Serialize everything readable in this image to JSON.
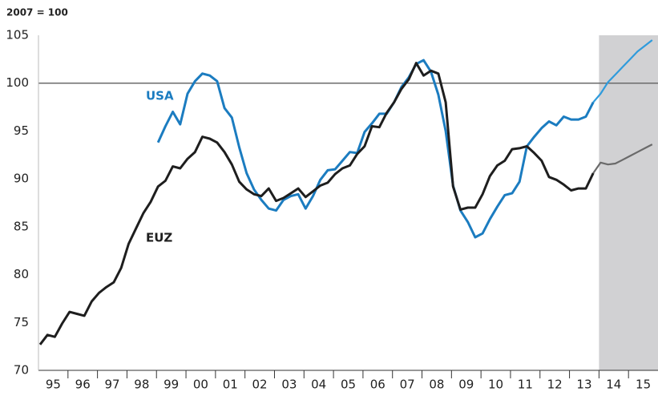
{
  "chart_data": {
    "type": "line",
    "y_label": "2007 = 100",
    "categories": [
      "95",
      "96",
      "97",
      "98",
      "99",
      "00",
      "01",
      "02",
      "03",
      "04",
      "05",
      "06",
      "07",
      "08",
      "09",
      "10",
      "11",
      "12",
      "13",
      "14",
      "15"
    ],
    "ylim": [
      70,
      105
    ],
    "yticks": [
      70,
      75,
      80,
      85,
      90,
      95,
      100,
      105
    ],
    "ref_line": 100,
    "shade": {
      "from": "14",
      "to": "15",
      "color": "#d1d1d3"
    },
    "series": [
      {
        "name": "USA",
        "color": "#1b7cc0",
        "forecast_color": "#2f9bdc",
        "values": [
          [
            null,
            null,
            null,
            null
          ],
          [
            null,
            null,
            null,
            null
          ],
          [
            null,
            null,
            null,
            null
          ],
          [
            null,
            null,
            null,
            null
          ],
          [
            93.8,
            95.5,
            97.0,
            95.7
          ],
          [
            98.9,
            100.2,
            101.0,
            100.8
          ],
          [
            100.2,
            97.4,
            96.4,
            93.3
          ],
          [
            90.6,
            88.9,
            87.8,
            86.9
          ],
          [
            86.7,
            87.8,
            88.2,
            88.4
          ],
          [
            86.9,
            88.2,
            89.9,
            90.9
          ],
          [
            91.0,
            91.9,
            92.8,
            92.7
          ],
          [
            94.9,
            95.8,
            96.8,
            96.8
          ],
          [
            98.0,
            99.6,
            100.6,
            102.0
          ],
          [
            102.4,
            101.2,
            98.8,
            95.0
          ],
          [
            89.3,
            86.7,
            85.5,
            83.9
          ],
          [
            84.3,
            85.8,
            87.1,
            88.3
          ],
          [
            88.5,
            89.7,
            93.4,
            94.4
          ],
          [
            95.3,
            96.0,
            95.6,
            96.5
          ],
          [
            96.2,
            96.2,
            96.5,
            98.0
          ],
          [
            98.9,
            100.1,
            100.9,
            101.7
          ],
          [
            102.5,
            103.3,
            103.9,
            104.5
          ]
        ]
      },
      {
        "name": "EUZ",
        "color": "#1e1e1e",
        "forecast_color": "#6a6a6a",
        "values": [
          [
            72.7,
            73.7,
            73.5,
            74.9
          ],
          [
            76.1,
            75.9,
            75.7,
            77.2
          ],
          [
            78.1,
            78.7,
            79.2,
            80.7
          ],
          [
            83.2,
            84.8,
            86.4,
            87.6
          ],
          [
            89.2,
            89.8,
            91.3,
            91.1
          ],
          [
            92.1,
            92.8,
            94.4,
            94.2
          ],
          [
            93.8,
            92.8,
            91.5,
            89.7
          ],
          [
            88.9,
            88.4,
            88.2,
            89.0
          ],
          [
            87.7,
            88.0,
            88.5,
            89.0
          ],
          [
            88.1,
            88.7,
            89.3,
            89.6
          ],
          [
            90.5,
            91.1,
            91.4,
            92.6
          ],
          [
            93.4,
            95.5,
            95.4,
            96.9
          ],
          [
            98.0,
            99.4,
            100.4,
            102.1
          ],
          [
            100.8,
            101.3,
            101.0,
            98.0
          ],
          [
            89.2,
            86.8,
            87.0,
            87.0
          ],
          [
            88.4,
            90.3,
            91.4,
            91.9
          ],
          [
            93.1,
            93.2,
            93.4,
            92.7
          ],
          [
            91.9,
            90.2,
            89.9,
            89.4
          ],
          [
            88.8,
            89.0,
            89.0,
            90.6
          ],
          [
            91.7,
            91.5,
            91.6,
            92.0
          ],
          [
            92.4,
            92.8,
            93.2,
            93.6
          ]
        ]
      }
    ]
  }
}
